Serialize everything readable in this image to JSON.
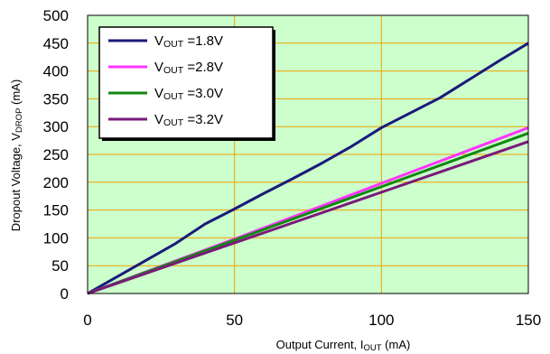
{
  "chart_data": {
    "type": "line",
    "xlabel": {
      "main": "Output Current, I",
      "sub": "OUT",
      "unit": " (mA)"
    },
    "ylabel": {
      "main": "Dropout Voltage, V",
      "sub": "DROP",
      "unit": "  (mA)"
    },
    "xlim": [
      0,
      150
    ],
    "ylim": [
      0,
      500
    ],
    "xticks": [
      0,
      50,
      100,
      150
    ],
    "yticks": [
      0,
      50,
      100,
      150,
      200,
      250,
      300,
      350,
      400,
      450,
      500
    ],
    "grid": true,
    "legend_position": "top-left",
    "colors": {
      "plot_background": "#ccffcc",
      "grid": "#f0a000",
      "border": "#000000"
    },
    "series": [
      {
        "name": {
          "main": "V",
          "sub": "OUT",
          "rest": " =1.8V"
        },
        "color": "#1a1a7a",
        "x": [
          0,
          10,
          20,
          30,
          40,
          50,
          60,
          70,
          80,
          90,
          100,
          110,
          120,
          130,
          140,
          150
        ],
        "y": [
          0,
          30,
          60,
          90,
          125,
          152,
          180,
          207,
          235,
          265,
          298,
          325,
          352,
          385,
          418,
          450
        ]
      },
      {
        "name": {
          "main": "V",
          "sub": "OUT",
          "rest": " =2.8V"
        },
        "color": "#ff33ff",
        "x": [
          0,
          50,
          100,
          150
        ],
        "y": [
          0,
          98,
          198,
          298
        ]
      },
      {
        "name": {
          "main": "V",
          "sub": "OUT",
          "rest": " =3.0V"
        },
        "color": "#118811",
        "x": [
          0,
          50,
          100,
          150
        ],
        "y": [
          0,
          96,
          192,
          288
        ]
      },
      {
        "name": {
          "main": "V",
          "sub": "OUT",
          "rest": " =3.2V"
        },
        "color": "#7a1a7a",
        "x": [
          0,
          50,
          100,
          150
        ],
        "y": [
          0,
          91,
          182,
          273
        ]
      }
    ]
  }
}
